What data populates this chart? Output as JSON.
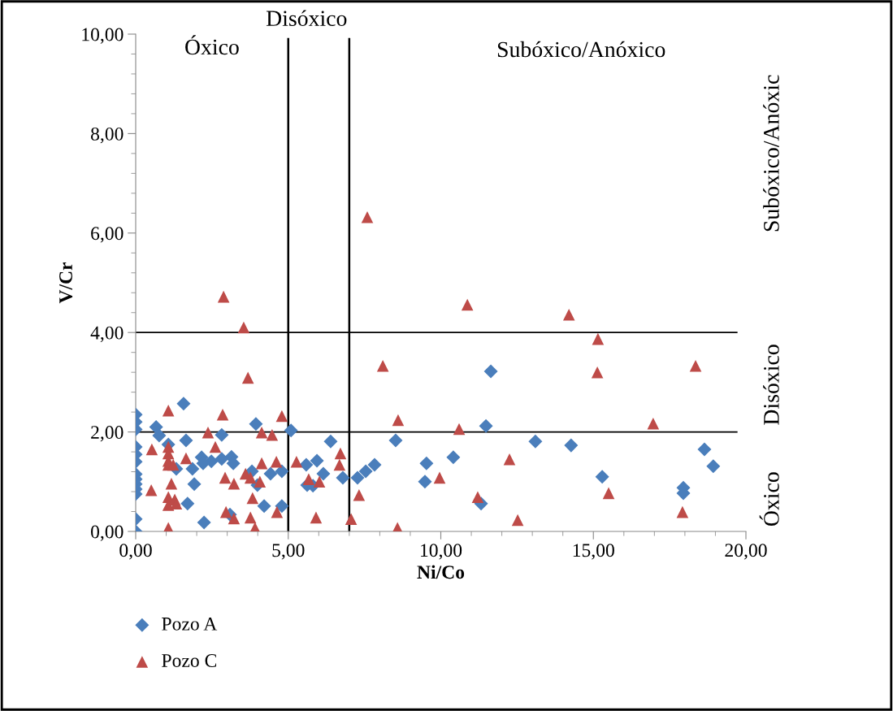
{
  "chart_data": {
    "type": "scatter",
    "xlabel": "Ni/Co",
    "ylabel": "V/Cr",
    "xlim": [
      0,
      20
    ],
    "ylim": [
      0,
      10
    ],
    "xticks": [
      {
        "value": 0,
        "label": "0,00"
      },
      {
        "value": 5,
        "label": "5,00"
      },
      {
        "value": 10,
        "label": "10,00"
      },
      {
        "value": 15,
        "label": "15,00"
      },
      {
        "value": 20,
        "label": "20,00"
      }
    ],
    "yticks": [
      {
        "value": 0,
        "label": "0,00"
      },
      {
        "value": 2,
        "label": "2,00"
      },
      {
        "value": 4,
        "label": "4,00"
      },
      {
        "value": 6,
        "label": "6,00"
      },
      {
        "value": 8,
        "label": "8,00"
      },
      {
        "value": 10,
        "label": "10,00"
      }
    ],
    "grid": false,
    "legend": "bottom left",
    "ref_lines": [
      {
        "axis": "x",
        "value": 5,
        "label": "Disóxico"
      },
      {
        "axis": "x",
        "value": 7
      },
      {
        "axis": "y",
        "value": 4
      },
      {
        "axis": "y",
        "value": 2
      }
    ],
    "annotations": [
      "Óxico",
      "Subóxico/Anóxico",
      "Subóxico/Anóxic",
      "Disóxico",
      "Óxico"
    ],
    "series": [
      {
        "name": "Pozo A",
        "color": "#4a7ebb",
        "marker": "diamond",
        "x": [
          0,
          0,
          0,
          0,
          0,
          0,
          0,
          0,
          0,
          0,
          0,
          0,
          0,
          0.67,
          0.77,
          1.57,
          1.65,
          1.07,
          1.33,
          1.86,
          1.7,
          2.16,
          2.48,
          2.82,
          3.14,
          3.2,
          2.21,
          2.82,
          2.24,
          3.94,
          5.09,
          3.81,
          3.99,
          4.21,
          4.42,
          4.79,
          4.79,
          3.09,
          1.92,
          6.39,
          5.59,
          5.94,
          6.15,
          5.62,
          5.81,
          6.79,
          7.27,
          7.54,
          7.83,
          8.52,
          9.53,
          9.48,
          10.41,
          11.64,
          11.48,
          13.1,
          14.27,
          15.29,
          11.32,
          17.95,
          17.95,
          18.64,
          18.93
        ],
        "values": [
          0,
          0.25,
          0.75,
          0.85,
          0.95,
          1.05,
          1.15,
          1.4,
          1.55,
          1.7,
          2.05,
          2.2,
          2.35,
          2.1,
          1.93,
          2.57,
          1.83,
          1.75,
          1.26,
          1.26,
          0.56,
          1.49,
          1.41,
          1.46,
          1.5,
          1.37,
          1.37,
          1.94,
          0.18,
          2.16,
          2.03,
          1.21,
          0.93,
          0.51,
          1.16,
          1.21,
          0.51,
          0.34,
          0.95,
          1.81,
          1.34,
          1.42,
          1.16,
          0.93,
          0.92,
          1.08,
          1.08,
          1.21,
          1.34,
          1.83,
          1.37,
          1.0,
          1.49,
          3.22,
          2.12,
          1.81,
          1.73,
          1.1,
          0.56,
          0.88,
          0.77,
          1.65,
          1.31
        ]
      },
      {
        "name": "Pozo C",
        "color": "#be4b48",
        "marker": "triangle",
        "x": [
          1.07,
          2.85,
          4.79,
          2.37,
          4.13,
          4.47,
          2.61,
          0.53,
          1.07,
          1.07,
          1.07,
          1.07,
          1.23,
          1.65,
          4.13,
          4.61,
          5.27,
          2.93,
          3.22,
          3.6,
          3.76,
          4.07,
          1.17,
          0.51,
          1.07,
          1.28,
          1.07,
          1.33,
          3.83,
          4.63,
          2.96,
          3.22,
          3.76,
          3.91,
          1.07,
          8.6,
          10.6,
          6.71,
          6.68,
          5.67,
          6.02,
          7.32,
          5.91,
          7.06,
          8.58,
          9.96,
          2.88,
          3.54,
          3.68,
          7.59,
          10.87,
          8.1,
          14.2,
          15.15,
          15.13,
          18.35,
          16.96,
          12.25,
          11.21,
          15.5,
          17.92,
          12.52
        ],
        "values": [
          2.43,
          2.35,
          2.32,
          1.99,
          1.99,
          1.94,
          1.7,
          1.65,
          1.7,
          1.57,
          1.42,
          1.34,
          1.34,
          1.47,
          1.37,
          1.4,
          1.4,
          1.08,
          0.96,
          1.16,
          1.08,
          1.0,
          0.96,
          0.83,
          0.69,
          0.64,
          0.53,
          0.56,
          0.67,
          0.39,
          0.39,
          0.26,
          0.28,
          0.07,
          0.07,
          2.24,
          2.06,
          1.57,
          1.34,
          1.05,
          1.0,
          0.73,
          0.28,
          0.25,
          0.07,
          1.08,
          4.72,
          4.1,
          3.09,
          6.32,
          4.56,
          3.33,
          4.36,
          3.87,
          3.2,
          3.33,
          2.17,
          1.45,
          0.69,
          0.77,
          0.39,
          0.23
        ]
      }
    ]
  }
}
